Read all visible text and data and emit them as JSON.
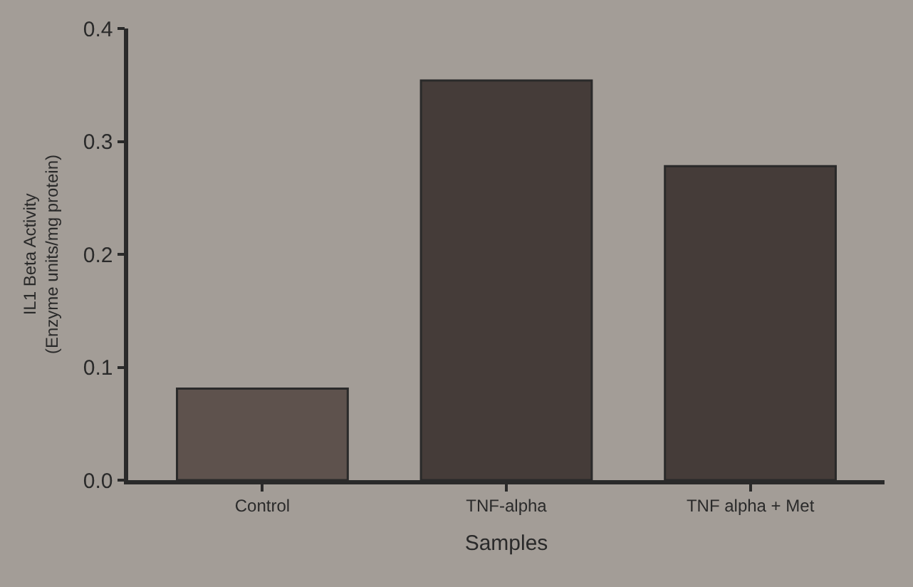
{
  "chart_data": {
    "type": "bar",
    "xlabel": "Samples",
    "ylabel": "IL1 Beta Activity\n(Enzyme units/mg protein)",
    "categories": [
      "Control",
      "TNF-alpha",
      "TNF alpha + Met"
    ],
    "values": [
      0.081,
      0.354,
      0.278
    ],
    "colors": [
      "#5e524d",
      "#453c39",
      "#453c39"
    ],
    "ylim": [
      0,
      0.4
    ],
    "yticks": [
      {
        "value": 0,
        "label": "0.0"
      },
      0.1,
      0.2,
      0.3,
      0.4
    ],
    "grid": false
  }
}
